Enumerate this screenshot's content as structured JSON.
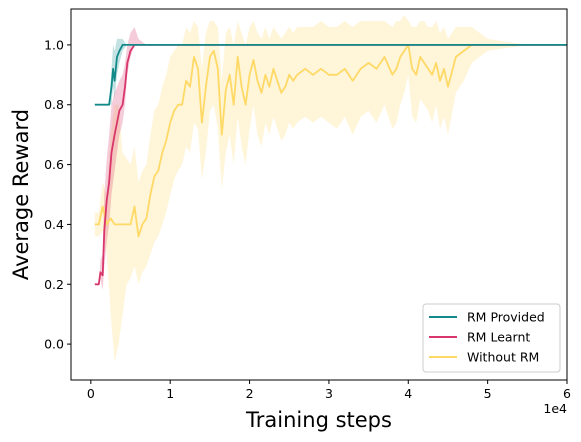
{
  "chart_data": {
    "type": "line",
    "xlabel": "Training steps",
    "ylabel": "Average Reward",
    "x_offset_label": "1e4",
    "xlim": [
      -2500,
      60000
    ],
    "ylim": [
      -0.12,
      1.12
    ],
    "x_ticks": [
      0,
      10000,
      20000,
      30000,
      40000,
      50000,
      60000
    ],
    "x_tick_labels": [
      "0",
      "1",
      "2",
      "3",
      "4",
      "5",
      "6"
    ],
    "y_ticks": [
      0.0,
      0.2,
      0.4,
      0.6,
      0.8,
      1.0
    ],
    "y_tick_labels": [
      "0.0",
      "0.2",
      "0.4",
      "0.6",
      "0.8",
      "1.0"
    ],
    "legend_position": "lower-right",
    "grid": false,
    "series": [
      {
        "name": "Without RM",
        "color": "#ffd966",
        "x": [
          500,
          1000,
          1500,
          2000,
          2500,
          3000,
          3500,
          4000,
          4500,
          5000,
          5500,
          6000,
          6500,
          7000,
          7500,
          8000,
          8500,
          9000,
          9500,
          10000,
          10500,
          11000,
          11500,
          12000,
          12500,
          13000,
          13500,
          14000,
          14500,
          15000,
          15500,
          16000,
          16500,
          17000,
          17500,
          18000,
          18500,
          19000,
          19500,
          20000,
          20500,
          21000,
          21500,
          22000,
          22500,
          23000,
          23500,
          24000,
          24500,
          25000,
          25500,
          26000,
          27000,
          28000,
          29000,
          30000,
          31000,
          32000,
          33000,
          34000,
          35000,
          36000,
          37000,
          38000,
          38500,
          39000,
          39500,
          40000,
          40500,
          41000,
          41500,
          42000,
          42500,
          43000,
          43500,
          44000,
          44500,
          45000,
          46000,
          47000,
          48000,
          50000,
          55000,
          60000
        ],
        "values": [
          0.4,
          0.4,
          0.46,
          0.4,
          0.42,
          0.4,
          0.4,
          0.4,
          0.4,
          0.4,
          0.46,
          0.36,
          0.4,
          0.42,
          0.5,
          0.56,
          0.58,
          0.64,
          0.68,
          0.74,
          0.78,
          0.8,
          0.8,
          0.88,
          0.86,
          0.96,
          0.92,
          0.74,
          0.86,
          0.96,
          0.98,
          0.92,
          0.7,
          0.85,
          0.9,
          0.8,
          0.96,
          0.86,
          0.8,
          0.9,
          0.95,
          0.88,
          0.84,
          0.9,
          0.86,
          0.92,
          0.88,
          0.84,
          0.86,
          0.9,
          0.88,
          0.9,
          0.92,
          0.9,
          0.92,
          0.9,
          0.9,
          0.92,
          0.88,
          0.92,
          0.94,
          0.92,
          0.96,
          0.9,
          0.92,
          0.96,
          0.98,
          1.0,
          0.92,
          0.9,
          0.96,
          0.94,
          0.92,
          0.9,
          0.94,
          0.88,
          0.92,
          0.86,
          0.96,
          0.98,
          1.0,
          1.0,
          1.0,
          1.0
        ],
        "lower": [
          0.36,
          0.36,
          0.38,
          0.3,
          0.1,
          -0.06,
          0.0,
          0.1,
          0.2,
          0.22,
          0.26,
          0.2,
          0.24,
          0.26,
          0.3,
          0.34,
          0.36,
          0.4,
          0.44,
          0.5,
          0.55,
          0.58,
          0.6,
          0.66,
          0.64,
          0.74,
          0.72,
          0.55,
          0.64,
          0.78,
          0.8,
          0.72,
          0.52,
          0.64,
          0.7,
          0.6,
          0.76,
          0.66,
          0.6,
          0.72,
          0.8,
          0.7,
          0.66,
          0.74,
          0.7,
          0.76,
          0.72,
          0.68,
          0.7,
          0.74,
          0.72,
          0.74,
          0.76,
          0.74,
          0.76,
          0.74,
          0.72,
          0.76,
          0.7,
          0.76,
          0.78,
          0.74,
          0.8,
          0.72,
          0.74,
          0.8,
          0.84,
          0.9,
          0.76,
          0.74,
          0.82,
          0.8,
          0.78,
          0.74,
          0.8,
          0.72,
          0.76,
          0.7,
          0.84,
          0.88,
          0.94,
          0.98,
          1.0,
          1.0
        ],
        "upper": [
          0.44,
          0.44,
          0.54,
          0.5,
          0.7,
          0.8,
          0.8,
          0.64,
          0.62,
          0.6,
          0.66,
          0.54,
          0.58,
          0.6,
          0.7,
          0.78,
          0.8,
          0.86,
          0.9,
          0.96,
          0.98,
          1.0,
          1.0,
          1.06,
          1.04,
          1.08,
          1.06,
          0.92,
          1.04,
          1.08,
          1.08,
          1.06,
          0.88,
          1.04,
          1.06,
          1.0,
          1.08,
          1.04,
          1.0,
          1.06,
          1.08,
          1.04,
          1.02,
          1.06,
          1.02,
          1.06,
          1.04,
          1.02,
          1.04,
          1.06,
          1.04,
          1.06,
          1.06,
          1.06,
          1.08,
          1.06,
          1.06,
          1.08,
          1.06,
          1.08,
          1.08,
          1.08,
          1.08,
          1.06,
          1.08,
          1.08,
          1.1,
          1.08,
          1.06,
          1.06,
          1.08,
          1.08,
          1.06,
          1.06,
          1.08,
          1.04,
          1.06,
          1.02,
          1.06,
          1.06,
          1.06,
          1.02,
          1.0,
          1.0
        ]
      },
      {
        "name": "RM Learnt",
        "color": "#d9366b",
        "x": [
          500,
          1000,
          1200,
          1500,
          1700,
          2000,
          2300,
          2600,
          3000,
          3300,
          3600,
          4000,
          4300,
          4600,
          5000,
          5500,
          6000,
          7000,
          8000,
          10000,
          20000,
          30000,
          40000,
          50000,
          60000
        ],
        "values": [
          0.2,
          0.2,
          0.24,
          0.23,
          0.38,
          0.48,
          0.54,
          0.64,
          0.7,
          0.74,
          0.78,
          0.8,
          0.86,
          0.94,
          0.98,
          1.0,
          1.0,
          1.0,
          1.0,
          1.0,
          1.0,
          1.0,
          1.0,
          1.0,
          1.0
        ],
        "lower": [
          0.2,
          0.2,
          0.22,
          0.18,
          0.26,
          0.34,
          0.4,
          0.5,
          0.58,
          0.64,
          0.7,
          0.74,
          0.8,
          0.9,
          0.96,
          1.0,
          1.0,
          1.0,
          1.0,
          1.0,
          1.0,
          1.0,
          1.0,
          1.0,
          1.0
        ],
        "upper": [
          0.2,
          0.2,
          0.28,
          0.3,
          0.5,
          0.62,
          0.7,
          0.8,
          0.84,
          0.86,
          0.88,
          0.9,
          0.94,
          1.0,
          1.04,
          1.06,
          1.02,
          1.0,
          1.0,
          1.0,
          1.0,
          1.0,
          1.0,
          1.0,
          1.0
        ]
      },
      {
        "name": "RM Provided",
        "color": "#138a8a",
        "x": [
          500,
          1000,
          1500,
          2000,
          2300,
          2600,
          2800,
          3000,
          3300,
          3600,
          4000,
          4500,
          5000,
          6000,
          8000,
          10000,
          20000,
          30000,
          40000,
          50000,
          60000
        ],
        "values": [
          0.8,
          0.8,
          0.8,
          0.8,
          0.8,
          0.86,
          0.92,
          0.88,
          0.96,
          0.98,
          1.0,
          1.0,
          1.0,
          1.0,
          1.0,
          1.0,
          1.0,
          1.0,
          1.0,
          1.0,
          1.0
        ],
        "lower": [
          0.8,
          0.8,
          0.8,
          0.8,
          0.8,
          0.8,
          0.86,
          0.82,
          0.9,
          0.94,
          0.98,
          1.0,
          1.0,
          1.0,
          1.0,
          1.0,
          1.0,
          1.0,
          1.0,
          1.0,
          1.0
        ],
        "upper": [
          0.8,
          0.8,
          0.8,
          0.8,
          0.8,
          0.92,
          1.0,
          0.98,
          1.02,
          1.02,
          1.02,
          1.0,
          1.0,
          1.0,
          1.0,
          1.0,
          1.0,
          1.0,
          1.0,
          1.0,
          1.0
        ]
      }
    ],
    "legend_order": [
      "RM Provided",
      "RM Learnt",
      "Without RM"
    ]
  }
}
